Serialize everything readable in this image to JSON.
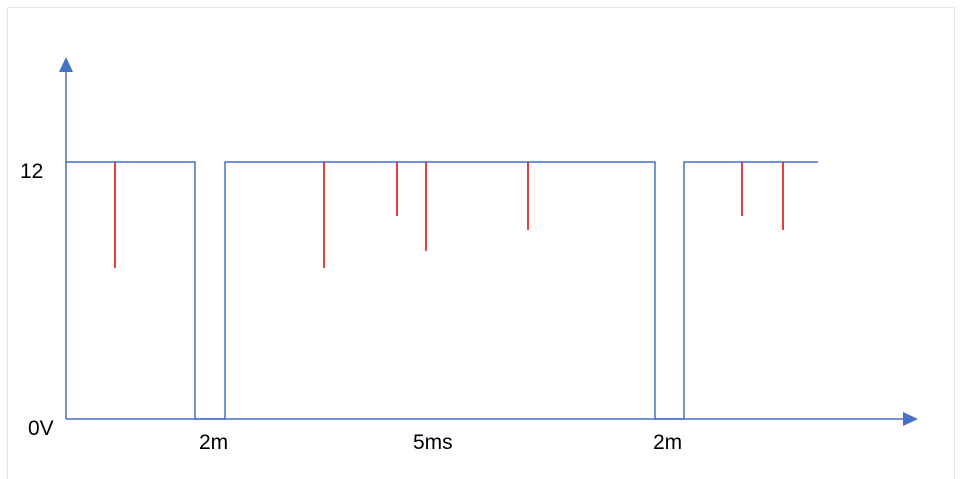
{
  "y_axis": {
    "high_label": "12",
    "zero_label": "0V"
  },
  "x_axis": {
    "label_first_low": "2m",
    "label_high": "5ms",
    "label_second_low": "2m"
  },
  "colors": {
    "signal": "#4472c4",
    "axes": "#4472c4",
    "spikes": "#e00000",
    "background": "#ffffff"
  }
}
